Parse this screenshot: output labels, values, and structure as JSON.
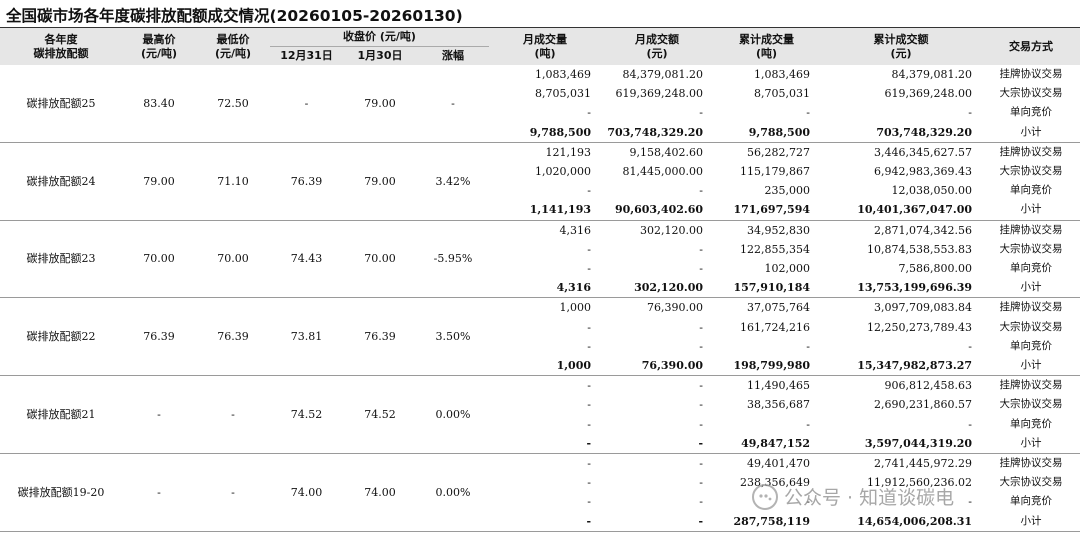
{
  "title": "全国碳市场各年度碳排放配额成交情况(20260105-20260130)",
  "header": {
    "year": "各年度\n碳排放配额",
    "high": "最高价\n(元/吨)",
    "low": "最低价\n(元/吨)",
    "close": "收盘价 (元/吨)",
    "close_d1": "12月31日",
    "close_d2": "1月30日",
    "change": "涨幅",
    "month_vol": "月成交量\n(吨)",
    "month_amt": "月成交额\n(元)",
    "cum_vol": "累计成交量\n(吨)",
    "cum_amt": "累计成交额\n(元)",
    "method": "交易方式"
  },
  "groups": [
    {
      "name": "碳排放配额25",
      "high": "83.40",
      "low": "72.50",
      "d1": "-",
      "d2": "79.00",
      "change": "-",
      "rows": [
        {
          "mv": "1,083,469",
          "ma": "84,379,081.20",
          "cv": "1,083,469",
          "ca": "84,379,081.20",
          "m": "挂牌协议交易"
        },
        {
          "mv": "8,705,031",
          "ma": "619,369,248.00",
          "cv": "8,705,031",
          "ca": "619,369,248.00",
          "m": "大宗协议交易"
        },
        {
          "mv": "-",
          "ma": "-",
          "cv": "-",
          "ca": "-",
          "m": "单向竞价"
        },
        {
          "mv": "9,788,500",
          "ma": "703,748,329.20",
          "cv": "9,788,500",
          "ca": "703,748,329.20",
          "m": "小计"
        }
      ]
    },
    {
      "name": "碳排放配额24",
      "high": "79.00",
      "low": "71.10",
      "d1": "76.39",
      "d2": "79.00",
      "change": "3.42%",
      "rows": [
        {
          "mv": "121,193",
          "ma": "9,158,402.60",
          "cv": "56,282,727",
          "ca": "3,446,345,627.57",
          "m": "挂牌协议交易"
        },
        {
          "mv": "1,020,000",
          "ma": "81,445,000.00",
          "cv": "115,179,867",
          "ca": "6,942,983,369.43",
          "m": "大宗协议交易"
        },
        {
          "mv": "-",
          "ma": "-",
          "cv": "235,000",
          "ca": "12,038,050.00",
          "m": "单向竞价"
        },
        {
          "mv": "1,141,193",
          "ma": "90,603,402.60",
          "cv": "171,697,594",
          "ca": "10,401,367,047.00",
          "m": "小计"
        }
      ]
    },
    {
      "name": "碳排放配额23",
      "high": "70.00",
      "low": "70.00",
      "d1": "74.43",
      "d2": "70.00",
      "change": "-5.95%",
      "rows": [
        {
          "mv": "4,316",
          "ma": "302,120.00",
          "cv": "34,952,830",
          "ca": "2,871,074,342.56",
          "m": "挂牌协议交易"
        },
        {
          "mv": "-",
          "ma": "-",
          "cv": "122,855,354",
          "ca": "10,874,538,553.83",
          "m": "大宗协议交易"
        },
        {
          "mv": "-",
          "ma": "-",
          "cv": "102,000",
          "ca": "7,586,800.00",
          "m": "单向竞价"
        },
        {
          "mv": "4,316",
          "ma": "302,120.00",
          "cv": "157,910,184",
          "ca": "13,753,199,696.39",
          "m": "小计"
        }
      ]
    },
    {
      "name": "碳排放配额22",
      "high": "76.39",
      "low": "76.39",
      "d1": "73.81",
      "d2": "76.39",
      "change": "3.50%",
      "rows": [
        {
          "mv": "1,000",
          "ma": "76,390.00",
          "cv": "37,075,764",
          "ca": "3,097,709,083.84",
          "m": "挂牌协议交易"
        },
        {
          "mv": "-",
          "ma": "-",
          "cv": "161,724,216",
          "ca": "12,250,273,789.43",
          "m": "大宗协议交易"
        },
        {
          "mv": "-",
          "ma": "-",
          "cv": "-",
          "ca": "-",
          "m": "单向竞价"
        },
        {
          "mv": "1,000",
          "ma": "76,390.00",
          "cv": "198,799,980",
          "ca": "15,347,982,873.27",
          "m": "小计"
        }
      ]
    },
    {
      "name": "碳排放配额21",
      "high": "-",
      "low": "-",
      "d1": "74.52",
      "d2": "74.52",
      "change": "0.00%",
      "rows": [
        {
          "mv": "-",
          "ma": "-",
          "cv": "11,490,465",
          "ca": "906,812,458.63",
          "m": "挂牌协议交易"
        },
        {
          "mv": "-",
          "ma": "-",
          "cv": "38,356,687",
          "ca": "2,690,231,860.57",
          "m": "大宗协议交易"
        },
        {
          "mv": "-",
          "ma": "-",
          "cv": "-",
          "ca": "-",
          "m": "单向竞价"
        },
        {
          "mv": "-",
          "ma": "-",
          "cv": "49,847,152",
          "ca": "3,597,044,319.20",
          "m": "小计"
        }
      ]
    },
    {
      "name": "碳排放配额19-20",
      "high": "-",
      "low": "-",
      "d1": "74.00",
      "d2": "74.00",
      "change": "0.00%",
      "rows": [
        {
          "mv": "-",
          "ma": "-",
          "cv": "49,401,470",
          "ca": "2,741,445,972.29",
          "m": "挂牌协议交易"
        },
        {
          "mv": "-",
          "ma": "-",
          "cv": "238,356,649",
          "ca": "11,912,560,236.02",
          "m": "大宗协议交易"
        },
        {
          "mv": "-",
          "ma": "-",
          "cv": "-",
          "ca": "-",
          "m": "单向竞价"
        },
        {
          "mv": "-",
          "ma": "-",
          "cv": "287,758,119",
          "ca": "14,654,006,208.31",
          "m": "小计"
        }
      ]
    }
  ],
  "watermark": {
    "icon": "wechat-icon",
    "text": "公众号 · 知道谈碳电"
  }
}
